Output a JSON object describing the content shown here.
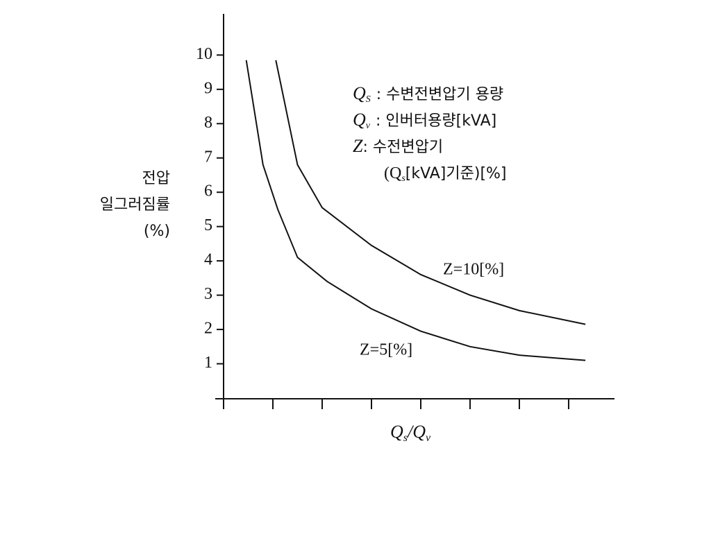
{
  "chart_data": {
    "type": "line",
    "ylabel": [
      "전압",
      "일그러짐률",
      "(%)"
    ],
    "xlabel": [
      "Q",
      "s",
      "/Q",
      "v"
    ],
    "notes": [
      {
        "symbol": "Q",
        "sub": "S",
        "text": ": 수변전변압기 용량"
      },
      {
        "symbol": "Q",
        "sub": "v",
        "text": ": 인버터용량[kVA]"
      },
      {
        "symbol": "Z",
        "text": ": 수전변압기"
      },
      {
        "text": "(Q",
        "sub": "s",
        "tail": "[kVA]기준)[%]"
      }
    ],
    "series": [
      {
        "name": "Z=10[%]",
        "color": "#111111",
        "x": [
          1.06,
          1.5,
          2,
          3,
          4,
          5,
          6,
          7.34
        ],
        "values": [
          9.85,
          6.8,
          5.55,
          4.45,
          3.6,
          3.0,
          2.55,
          2.15
        ]
      },
      {
        "name": "Z=5[%]",
        "color": "#111111",
        "x": [
          0.46,
          0.8,
          1.1,
          1.5,
          2.1,
          3,
          4,
          5,
          6,
          7.34
        ],
        "values": [
          9.85,
          6.8,
          5.5,
          4.1,
          3.4,
          2.6,
          1.95,
          1.5,
          1.25,
          1.1
        ]
      }
    ],
    "xlim": [
      0,
      7.93
    ],
    "ylim": [
      0,
      11.2
    ],
    "xticks": [
      0,
      1,
      2,
      3,
      4,
      5,
      6,
      7
    ],
    "yticks": [
      1,
      2,
      3,
      4,
      5,
      6,
      7,
      8,
      9,
      10
    ]
  }
}
